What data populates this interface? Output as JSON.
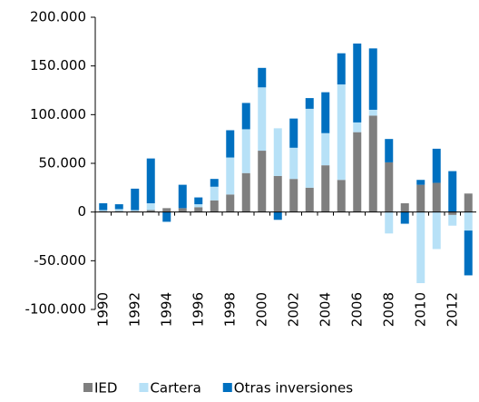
{
  "chart_data": {
    "type": "stacked_bar",
    "categories": [
      "1990",
      null,
      "1992",
      null,
      "1994",
      null,
      "1996",
      null,
      "1998",
      null,
      "2000",
      null,
      "2002",
      null,
      "2004",
      null,
      "2006",
      null,
      "2008",
      null,
      "2010",
      null,
      "2012",
      null
    ],
    "series": [
      {
        "name": "IED",
        "color": "#7f7f7f",
        "values": [
          1000,
          1000,
          1000,
          2000,
          4000,
          4000,
          5000,
          12000,
          18000,
          40000,
          63000,
          37000,
          34000,
          25000,
          48000,
          33000,
          82000,
          99000,
          51000,
          9000,
          28000,
          30000,
          -3000,
          19000
        ]
      },
      {
        "name": "Cartera",
        "color": "#b7e1f7",
        "values": [
          1000,
          2000,
          1000,
          7000,
          0,
          0,
          3000,
          14000,
          38000,
          45000,
          65000,
          49000,
          32000,
          81000,
          33000,
          98000,
          10000,
          6000,
          -22000,
          0,
          -73000,
          -38000,
          -11000,
          -19000
        ]
      },
      {
        "name": "Otras inversiones",
        "color": "#0070c0",
        "values": [
          7000,
          5000,
          22000,
          46000,
          -10000,
          24000,
          7000,
          8000,
          28000,
          27000,
          20000,
          -8000,
          30000,
          11000,
          42000,
          32000,
          81000,
          63000,
          24000,
          -12000,
          5000,
          35000,
          42000,
          -46000
        ]
      }
    ],
    "ylim": [
      -100000,
      200000
    ],
    "yticks": [
      {
        "value": -100000,
        "label": "-100.000"
      },
      {
        "value": -50000,
        "label": "-50.000"
      },
      0,
      {
        "value": 50000,
        "label": "50.000"
      },
      {
        "value": 100000,
        "label": "100.000"
      },
      {
        "value": 150000,
        "label": "150.000"
      },
      {
        "value": 200000,
        "label": "200.000"
      }
    ],
    "legend": "bottom"
  }
}
